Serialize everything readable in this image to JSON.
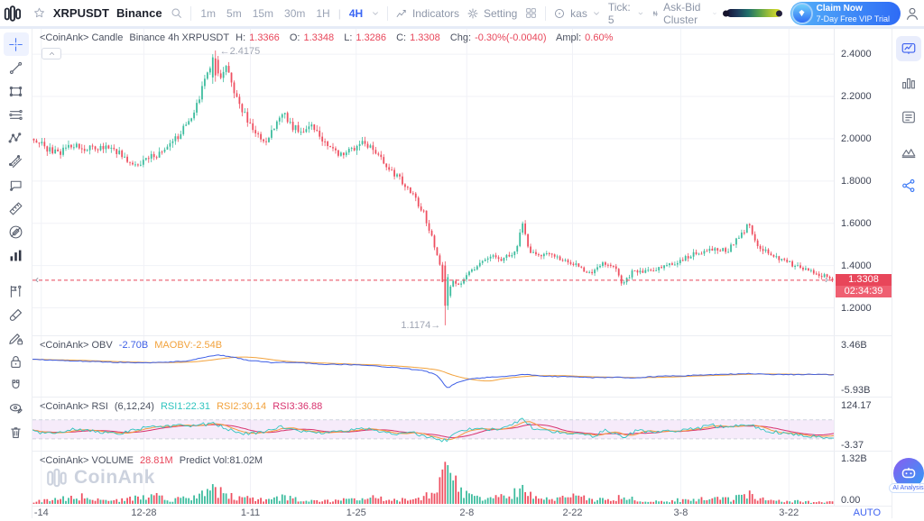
{
  "topbar": {
    "symbol": "XRPUSDT",
    "exchange": "Binance",
    "timeframes": [
      "1m",
      "5m",
      "15m",
      "30m",
      "1H"
    ],
    "active_timeframe": "4H",
    "indicators": "Indicators",
    "setting": "Setting",
    "market": "kas",
    "tick": "Tick: 5",
    "cluster": "Ask-Bid Cluster",
    "claim_title": "Claim Now",
    "claim_subtitle": "7-Day Free VIP Trial"
  },
  "main_pane": {
    "source": "<CoinAnk> Candle",
    "desc": "Binance 4h XRPUSDT",
    "ohlc": [
      {
        "k": "H:",
        "v": "1.3366"
      },
      {
        "k": "O:",
        "v": "1.3348"
      },
      {
        "k": "L:",
        "v": "1.3286"
      },
      {
        "k": "C:",
        "v": "1.3308"
      }
    ],
    "chg_k": "Chg:",
    "chg_v": "-0.30%(-0.0040)",
    "ampl_k": "Ampl:",
    "ampl_v": "0.60%"
  },
  "obv_pane": {
    "source": "<CoinAnk> OBV",
    "obv_value": "-2.70B",
    "maobv": "MAOBV:-2.54B"
  },
  "rsi_pane": {
    "source": "<CoinAnk> RSI",
    "params": "(6,12,24)",
    "rsi1": "RSI1:22.31",
    "rsi2": "RSI2:30.14",
    "rsi3": "RSI3:36.88"
  },
  "vol_pane": {
    "source": "<CoinAnk> VOLUME",
    "value": "28.81M",
    "predict": "Predict Vol:81.02M"
  },
  "price_tag": {
    "price": "1.3308",
    "countdown": "02:34:39"
  },
  "xaxis_auto": "AUTO",
  "watermark": "CoinAnk",
  "ai_badge": "AI Analysis",
  "chart_data": {
    "type": "candlestick-multi-pane",
    "symbol": "XRPUSDT",
    "interval": "4h",
    "x_ticks": [
      {
        "label": "-14",
        "t": 0.011
      },
      {
        "label": "12-28",
        "t": 0.139
      },
      {
        "label": "1-11",
        "t": 0.272
      },
      {
        "label": "1-25",
        "t": 0.404
      },
      {
        "label": "2-8",
        "t": 0.542
      },
      {
        "label": "2-22",
        "t": 0.674
      },
      {
        "label": "3-8",
        "t": 0.809
      },
      {
        "label": "3-22",
        "t": 0.944
      }
    ],
    "main": {
      "ylim": [
        1.07,
        2.52
      ],
      "y_ticks": [
        {
          "label": "2.4000",
          "v": 2.4
        },
        {
          "label": "2.2000",
          "v": 2.2
        },
        {
          "label": "2.0000",
          "v": 2.0
        },
        {
          "label": "1.8000",
          "v": 1.8
        },
        {
          "label": "1.6000",
          "v": 1.6
        },
        {
          "label": "1.4000",
          "v": 1.4
        },
        {
          "label": "1.2000",
          "v": 1.2
        }
      ],
      "price_line": 1.3308,
      "high_annotation": {
        "t": 0.227,
        "price": 2.4175,
        "label": "←2.4175"
      },
      "low_annotation": {
        "t": 0.516,
        "price": 1.1174,
        "label": "1.1174→"
      },
      "num_candles": 300,
      "up_color": "#3cbc9e",
      "down_color": "#ee4f60",
      "close_keyframes": [
        [
          0.0,
          2.0
        ],
        [
          0.015,
          1.955
        ],
        [
          0.03,
          1.93
        ],
        [
          0.048,
          1.975
        ],
        [
          0.065,
          1.95
        ],
        [
          0.085,
          1.96
        ],
        [
          0.1,
          1.955
        ],
        [
          0.115,
          1.9
        ],
        [
          0.13,
          1.87
        ],
        [
          0.148,
          1.915
        ],
        [
          0.163,
          1.94
        ],
        [
          0.175,
          1.985
        ],
        [
          0.19,
          2.06
        ],
        [
          0.205,
          2.16
        ],
        [
          0.218,
          2.33
        ],
        [
          0.227,
          2.39
        ],
        [
          0.233,
          2.27
        ],
        [
          0.242,
          2.34
        ],
        [
          0.252,
          2.21
        ],
        [
          0.263,
          2.12
        ],
        [
          0.275,
          2.03
        ],
        [
          0.29,
          1.99
        ],
        [
          0.303,
          2.06
        ],
        [
          0.312,
          2.13
        ],
        [
          0.322,
          2.06
        ],
        [
          0.335,
          2.04
        ],
        [
          0.348,
          2.07
        ],
        [
          0.362,
          1.99
        ],
        [
          0.38,
          1.93
        ],
        [
          0.398,
          1.945
        ],
        [
          0.412,
          1.99
        ],
        [
          0.425,
          1.94
        ],
        [
          0.443,
          1.87
        ],
        [
          0.46,
          1.8
        ],
        [
          0.475,
          1.73
        ],
        [
          0.488,
          1.65
        ],
        [
          0.5,
          1.52
        ],
        [
          0.51,
          1.38
        ],
        [
          0.516,
          1.21
        ],
        [
          0.523,
          1.33
        ],
        [
          0.532,
          1.3
        ],
        [
          0.545,
          1.365
        ],
        [
          0.558,
          1.41
        ],
        [
          0.572,
          1.45
        ],
        [
          0.588,
          1.43
        ],
        [
          0.603,
          1.47
        ],
        [
          0.612,
          1.59
        ],
        [
          0.62,
          1.47
        ],
        [
          0.633,
          1.44
        ],
        [
          0.648,
          1.46
        ],
        [
          0.663,
          1.425
        ],
        [
          0.68,
          1.4
        ],
        [
          0.698,
          1.355
        ],
        [
          0.712,
          1.415
        ],
        [
          0.726,
          1.4
        ],
        [
          0.738,
          1.305
        ],
        [
          0.75,
          1.38
        ],
        [
          0.768,
          1.37
        ],
        [
          0.788,
          1.395
        ],
        [
          0.808,
          1.42
        ],
        [
          0.828,
          1.455
        ],
        [
          0.848,
          1.48
        ],
        [
          0.868,
          1.47
        ],
        [
          0.885,
          1.54
        ],
        [
          0.895,
          1.595
        ],
        [
          0.906,
          1.5
        ],
        [
          0.92,
          1.455
        ],
        [
          0.938,
          1.425
        ],
        [
          0.955,
          1.395
        ],
        [
          0.972,
          1.37
        ],
        [
          0.988,
          1.355
        ],
        [
          1.0,
          1.331
        ]
      ]
    },
    "obv": {
      "vlim": [
        5.3,
        -7.4
      ],
      "y_ticks": [
        {
          "label": "3.46B",
          "v": 3.46
        },
        {
          "label": "-5.93B",
          "v": -5.93
        }
      ],
      "obv_color": "#3e5fe6",
      "maobv_color": "#f2a23c",
      "keyframes_billions": [
        [
          0,
          0.5
        ],
        [
          0.05,
          0.2
        ],
        [
          0.1,
          -0.1
        ],
        [
          0.15,
          -0.2
        ],
        [
          0.19,
          0.1
        ],
        [
          0.215,
          0.9
        ],
        [
          0.23,
          1.4
        ],
        [
          0.245,
          1.1
        ],
        [
          0.27,
          0.3
        ],
        [
          0.3,
          -0.2
        ],
        [
          0.33,
          -0.1
        ],
        [
          0.36,
          -0.5
        ],
        [
          0.4,
          -0.6
        ],
        [
          0.43,
          -0.9
        ],
        [
          0.46,
          -1.3
        ],
        [
          0.49,
          -1.9
        ],
        [
          0.505,
          -2.8
        ],
        [
          0.518,
          -5.5
        ],
        [
          0.528,
          -4.4
        ],
        [
          0.545,
          -3.6
        ],
        [
          0.57,
          -3.2
        ],
        [
          0.6,
          -2.9
        ],
        [
          0.612,
          -2.6
        ],
        [
          0.64,
          -3.0
        ],
        [
          0.67,
          -3.1
        ],
        [
          0.7,
          -3.3
        ],
        [
          0.73,
          -3.2
        ],
        [
          0.75,
          -3.35
        ],
        [
          0.78,
          -3.0
        ],
        [
          0.81,
          -2.9
        ],
        [
          0.84,
          -2.7
        ],
        [
          0.87,
          -2.55
        ],
        [
          0.895,
          -2.45
        ],
        [
          0.92,
          -2.6
        ],
        [
          0.95,
          -2.65
        ],
        [
          0.98,
          -2.6
        ],
        [
          1.0,
          -2.7
        ]
      ]
    },
    "rsi": {
      "vlim": [
        150,
        -20
      ],
      "y_ticks": [
        {
          "label": "124.17",
          "v": 124.17
        },
        {
          "label": "-3.37",
          "v": -3.37
        }
      ],
      "band": [
        20,
        80
      ],
      "colors": {
        "rsi1": "#2fc4bf",
        "rsi2": "#f59a3c",
        "rsi3": "#d8326e"
      },
      "last_values": {
        "rsi1": 22.31,
        "rsi2": 30.14,
        "rsi3": 36.88
      },
      "keyframes": [
        [
          0,
          45
        ],
        [
          0.02,
          35
        ],
        [
          0.05,
          52
        ],
        [
          0.08,
          42
        ],
        [
          0.11,
          38
        ],
        [
          0.14,
          55
        ],
        [
          0.17,
          60
        ],
        [
          0.2,
          63
        ],
        [
          0.227,
          68
        ],
        [
          0.245,
          48
        ],
        [
          0.27,
          34
        ],
        [
          0.3,
          48
        ],
        [
          0.312,
          58
        ],
        [
          0.34,
          42
        ],
        [
          0.37,
          38
        ],
        [
          0.4,
          48
        ],
        [
          0.42,
          52
        ],
        [
          0.45,
          36
        ],
        [
          0.47,
          42
        ],
        [
          0.49,
          28
        ],
        [
          0.516,
          14
        ],
        [
          0.53,
          42
        ],
        [
          0.555,
          55
        ],
        [
          0.58,
          48
        ],
        [
          0.6,
          66
        ],
        [
          0.612,
          84
        ],
        [
          0.625,
          52
        ],
        [
          0.645,
          44
        ],
        [
          0.665,
          38
        ],
        [
          0.685,
          32
        ],
        [
          0.7,
          28
        ],
        [
          0.715,
          46
        ],
        [
          0.738,
          26
        ],
        [
          0.755,
          48
        ],
        [
          0.775,
          40
        ],
        [
          0.8,
          46
        ],
        [
          0.825,
          52
        ],
        [
          0.85,
          62
        ],
        [
          0.87,
          55
        ],
        [
          0.895,
          68
        ],
        [
          0.915,
          44
        ],
        [
          0.94,
          38
        ],
        [
          0.96,
          32
        ],
        [
          0.98,
          28
        ],
        [
          1.0,
          22.31
        ]
      ]
    },
    "volume": {
      "max_billions": 1.45,
      "y_ticks": [
        {
          "label": "1.32B",
          "v": 1.32
        },
        {
          "label": "0.00",
          "v": 0
        }
      ],
      "keyframes_fraction": [
        [
          0,
          0.06
        ],
        [
          0.03,
          0.1
        ],
        [
          0.055,
          0.17
        ],
        [
          0.08,
          0.08
        ],
        [
          0.1,
          0.07
        ],
        [
          0.13,
          0.14
        ],
        [
          0.148,
          0.2
        ],
        [
          0.17,
          0.09
        ],
        [
          0.2,
          0.12
        ],
        [
          0.218,
          0.26
        ],
        [
          0.227,
          0.3
        ],
        [
          0.245,
          0.16
        ],
        [
          0.27,
          0.11
        ],
        [
          0.3,
          0.1
        ],
        [
          0.312,
          0.14
        ],
        [
          0.34,
          0.07
        ],
        [
          0.37,
          0.06
        ],
        [
          0.4,
          0.1
        ],
        [
          0.418,
          0.14
        ],
        [
          0.45,
          0.08
        ],
        [
          0.47,
          0.1
        ],
        [
          0.49,
          0.16
        ],
        [
          0.505,
          0.42
        ],
        [
          0.516,
          0.98
        ],
        [
          0.525,
          0.52
        ],
        [
          0.54,
          0.2
        ],
        [
          0.57,
          0.12
        ],
        [
          0.6,
          0.22
        ],
        [
          0.612,
          0.36
        ],
        [
          0.63,
          0.14
        ],
        [
          0.655,
          0.1
        ],
        [
          0.674,
          0.18
        ],
        [
          0.7,
          0.08
        ],
        [
          0.72,
          0.1
        ],
        [
          0.738,
          0.16
        ],
        [
          0.76,
          0.08
        ],
        [
          0.79,
          0.07
        ],
        [
          0.82,
          0.09
        ],
        [
          0.85,
          0.11
        ],
        [
          0.875,
          0.1
        ],
        [
          0.895,
          0.22
        ],
        [
          0.915,
          0.09
        ],
        [
          0.94,
          0.07
        ],
        [
          0.965,
          0.05
        ],
        [
          1.0,
          0.04
        ]
      ]
    }
  }
}
